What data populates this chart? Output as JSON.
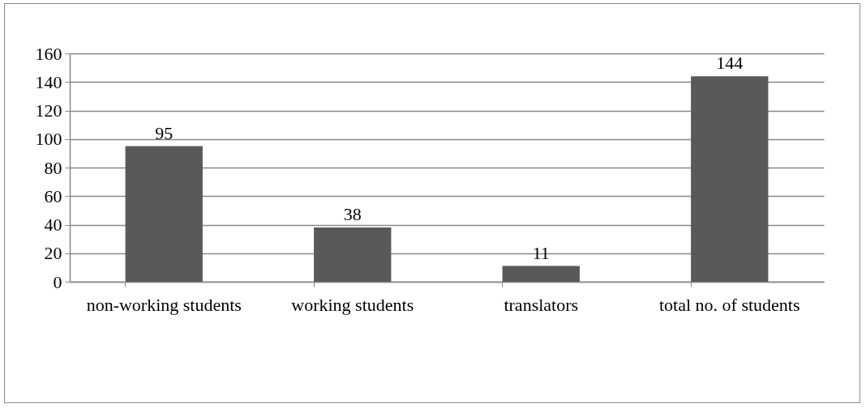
{
  "chart_data": {
    "type": "bar",
    "categories": [
      "non-working students",
      "working students",
      "translators",
      "total no. of students"
    ],
    "values": [
      95,
      38,
      11,
      144
    ],
    "color": "#595959",
    "ylim": [
      0,
      160
    ],
    "yticks": [
      0,
      20,
      40,
      60,
      80,
      100,
      120,
      140,
      160
    ],
    "grid": "y",
    "data_labels": true
  }
}
